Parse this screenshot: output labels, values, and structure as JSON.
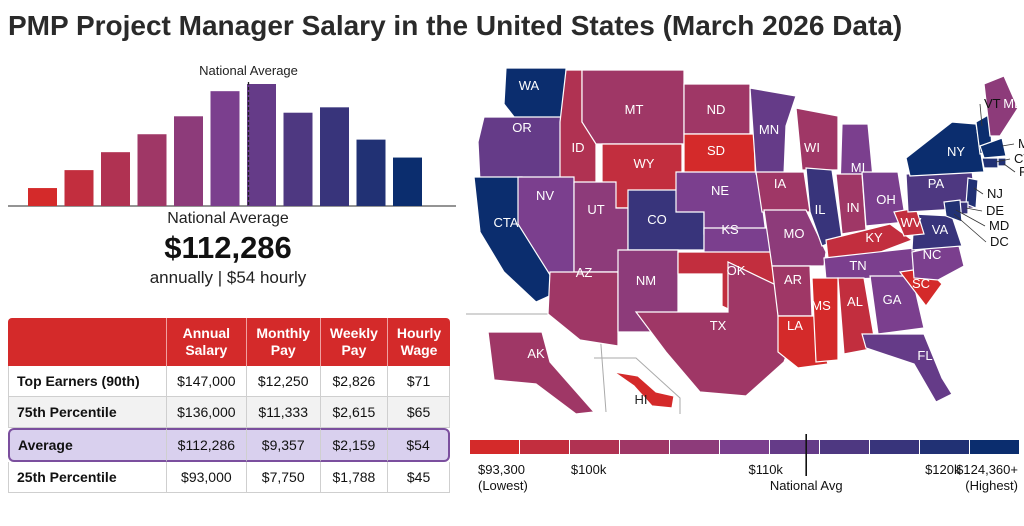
{
  "title": "PMP Project Manager Salary in the United States (March 2026 Data)",
  "summary": {
    "label": "National Average",
    "amount": "$112,286",
    "sub": "annually | $54 hourly"
  },
  "colors": {
    "low": "#d42a2a",
    "mid": "#7b3f8e",
    "high": "#0b2d6e",
    "table_header": "#d42a2a",
    "average_row": "#d9d0ee"
  },
  "chart_data": [
    {
      "type": "bar",
      "title": "",
      "annotation": "National Average",
      "average_after_bar": 6,
      "values": [
        1,
        2,
        3,
        4,
        5,
        6.4,
        6.8,
        5.2,
        5.5,
        3.7,
        2.7
      ],
      "note": "relative bar heights; no axis printed"
    },
    {
      "type": "choropleth",
      "title": "",
      "regions": [
        {
          "label": "WA",
          "level": 10
        },
        {
          "label": "OR",
          "level": 6
        },
        {
          "label": "CTA",
          "level": 10
        },
        {
          "label": "ID",
          "level": 2
        },
        {
          "label": "NV",
          "level": 5
        },
        {
          "label": "MT",
          "level": 3
        },
        {
          "label": "WY",
          "level": 1
        },
        {
          "label": "UT",
          "level": 4
        },
        {
          "label": "AZ",
          "level": 3
        },
        {
          "label": "CO",
          "level": 8
        },
        {
          "label": "NM",
          "level": 4
        },
        {
          "label": "ND",
          "level": 3
        },
        {
          "label": "SD",
          "level": 0
        },
        {
          "label": "NE",
          "level": 5
        },
        {
          "label": "KS",
          "level": 5
        },
        {
          "label": "OK",
          "level": 1
        },
        {
          "label": "TX",
          "level": 3
        },
        {
          "label": "MN",
          "level": 6
        },
        {
          "label": "IA",
          "level": 3
        },
        {
          "label": "MO",
          "level": 4
        },
        {
          "label": "AR",
          "level": 3
        },
        {
          "label": "LA",
          "level": 0
        },
        {
          "label": "WI",
          "level": 3
        },
        {
          "label": "IL",
          "level": 8
        },
        {
          "label": "MI",
          "level": 5
        },
        {
          "label": "IN",
          "level": 3
        },
        {
          "label": "OH",
          "level": 5
        },
        {
          "label": "KY",
          "level": 1
        },
        {
          "label": "TN",
          "level": 5
        },
        {
          "label": "MS",
          "level": 0
        },
        {
          "label": "AL",
          "level": 1
        },
        {
          "label": "GA",
          "level": 5
        },
        {
          "label": "FL",
          "level": 6
        },
        {
          "label": "SC",
          "level": 0
        },
        {
          "label": "NC",
          "level": 5
        },
        {
          "label": "VA",
          "level": 8
        },
        {
          "label": "WV",
          "level": 1
        },
        {
          "label": "PA",
          "level": 7
        },
        {
          "label": "NY",
          "level": 10
        },
        {
          "label": "VT",
          "level": 10
        },
        {
          "label": "ME",
          "level": 4
        },
        {
          "label": "MA",
          "level": 10
        },
        {
          "label": "CT",
          "level": 9
        },
        {
          "label": "RI",
          "level": 9
        },
        {
          "label": "NJ",
          "level": 9
        },
        {
          "label": "DE",
          "level": 8
        },
        {
          "label": "MD",
          "level": 9
        },
        {
          "label": "DC",
          "level": 10
        },
        {
          "label": "AK",
          "level": 3
        },
        {
          "label": "HI",
          "level": 0
        }
      ],
      "legend": {
        "steps": 11,
        "min_label": "$93,300",
        "min_sub": "(Lowest)",
        "ticks": [
          {
            "label": "$100k",
            "value": 100000
          },
          {
            "label": "$110k",
            "value": 110000
          },
          {
            "label": "$120k",
            "value": 120000
          }
        ],
        "max_label": "$124,360+",
        "max_sub": "(Highest)",
        "avg_label": "National Avg",
        "min_value": 93300,
        "max_value": 124360,
        "avg_value": 112286
      }
    }
  ],
  "table": {
    "headers": [
      "",
      "Annual\nSalary",
      "Monthly\nPay",
      "Weekly\nPay",
      "Hourly\nWage"
    ],
    "rows": [
      {
        "label": "Top Earners (90th)",
        "annual": "$147,000",
        "monthly": "$12,250",
        "weekly": "$2,826",
        "hourly": "$71"
      },
      {
        "label": "75th Percentile",
        "annual": "$136,000",
        "monthly": "$11,333",
        "weekly": "$2,615",
        "hourly": "$65"
      },
      {
        "label": "Average",
        "annual": "$112,286",
        "monthly": "$9,357",
        "weekly": "$2,159",
        "hourly": "$54"
      },
      {
        "label": "25th Percentile",
        "annual": "$93,000",
        "monthly": "$7,750",
        "weekly": "$1,788",
        "hourly": "$45"
      }
    ]
  }
}
